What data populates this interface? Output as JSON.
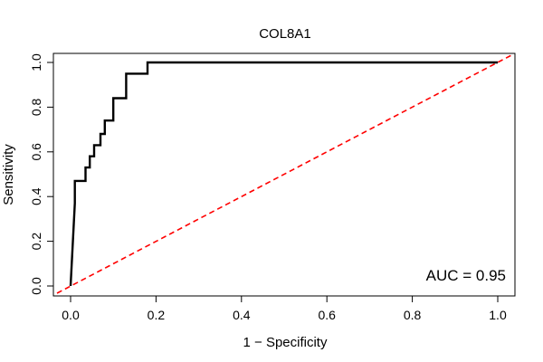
{
  "chart_data": {
    "type": "line",
    "title": "COL8A1",
    "xlabel": "1 − Specificity",
    "ylabel": "Sensitivity",
    "xlim": [
      0.0,
      1.0
    ],
    "ylim": [
      0.0,
      1.0
    ],
    "x_ticks": [
      "0.0",
      "0.2",
      "0.4",
      "0.6",
      "0.8",
      "1.0"
    ],
    "y_ticks": [
      "0.0",
      "0.2",
      "0.4",
      "0.6",
      "0.8",
      "1.0"
    ],
    "grid": false,
    "annotation": "AUC = 0.95",
    "roc_curve": {
      "color": "#000000",
      "points": [
        [
          0.0,
          0.0
        ],
        [
          0.01,
          0.37
        ],
        [
          0.01,
          0.47
        ],
        [
          0.035,
          0.47
        ],
        [
          0.035,
          0.53
        ],
        [
          0.045,
          0.53
        ],
        [
          0.045,
          0.58
        ],
        [
          0.055,
          0.58
        ],
        [
          0.055,
          0.63
        ],
        [
          0.07,
          0.63
        ],
        [
          0.07,
          0.68
        ],
        [
          0.08,
          0.68
        ],
        [
          0.08,
          0.74
        ],
        [
          0.1,
          0.74
        ],
        [
          0.1,
          0.84
        ],
        [
          0.13,
          0.84
        ],
        [
          0.13,
          0.95
        ],
        [
          0.18,
          0.95
        ],
        [
          0.18,
          1.0
        ],
        [
          1.0,
          1.0
        ]
      ]
    },
    "reference_line": {
      "color": "#ff0000",
      "style": "dashed",
      "points": [
        [
          0.0,
          0.0
        ],
        [
          1.0,
          1.0
        ]
      ]
    }
  }
}
